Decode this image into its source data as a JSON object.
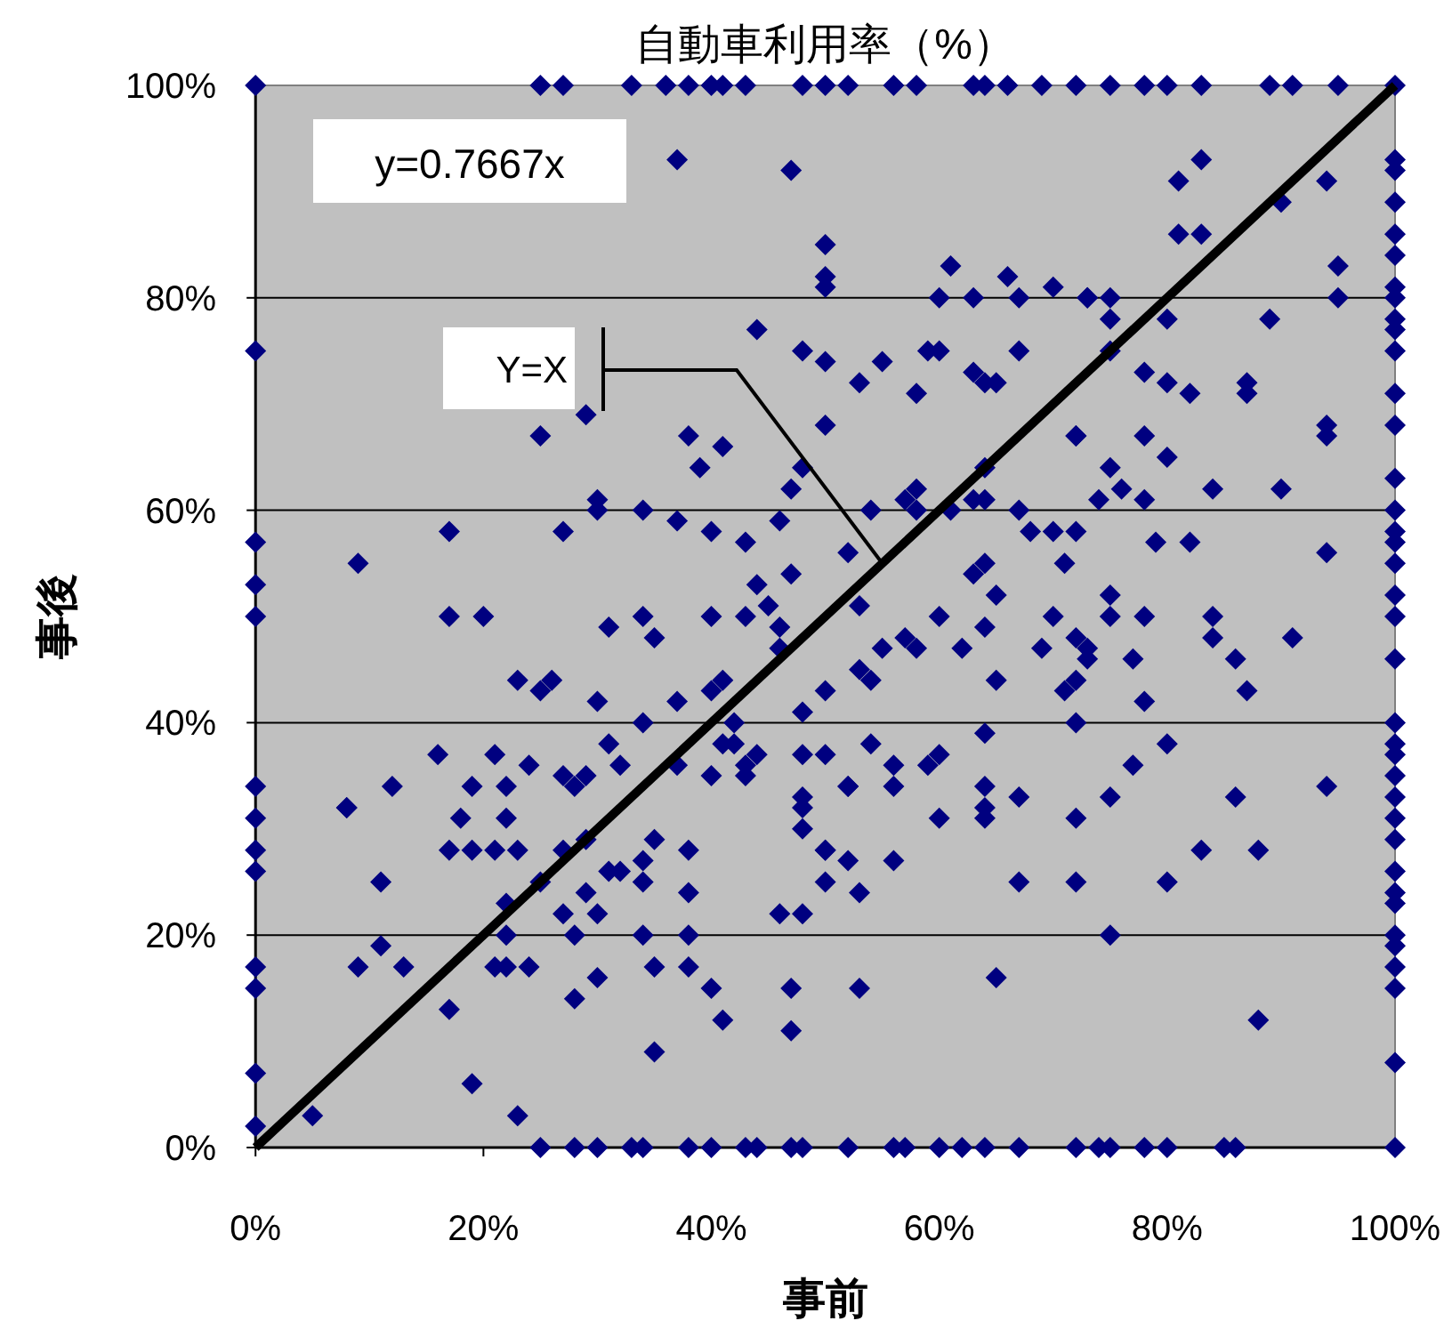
{
  "chart_data": {
    "type": "scatter",
    "title": "自動車利用率（%）",
    "xlabel": "事前",
    "ylabel": "事後",
    "xlim": [
      0,
      100
    ],
    "ylim": [
      0,
      100
    ],
    "xticks": [
      {
        "value": 0,
        "label": "0%"
      },
      {
        "value": 20,
        "label": "20%"
      },
      {
        "value": 40,
        "label": "40%"
      },
      {
        "value": 60,
        "label": "60%"
      },
      {
        "value": 80,
        "label": "80%"
      },
      {
        "value": 100,
        "label": "100%"
      }
    ],
    "yticks": [
      {
        "value": 0,
        "label": "0%"
      },
      {
        "value": 20,
        "label": "20%"
      },
      {
        "value": 40,
        "label": "40%"
      },
      {
        "value": 60,
        "label": "60%"
      },
      {
        "value": 80,
        "label": "80%"
      },
      {
        "value": 100,
        "label": "100%"
      }
    ],
    "grid": "y",
    "marker": "diamond",
    "annotations": [
      "y=0.7667x"
    ],
    "series": [
      {
        "color": "#000080",
        "x": [
          0,
          25,
          27,
          33,
          36,
          38,
          40,
          41,
          43,
          48,
          50,
          52,
          56,
          58,
          63,
          64,
          66,
          69,
          72,
          75,
          78,
          80,
          83,
          89,
          91,
          95,
          100,
          25,
          28,
          30,
          33,
          34,
          38,
          40,
          43,
          44,
          47,
          48,
          52,
          56,
          57,
          60,
          62,
          64,
          67,
          72,
          74,
          75,
          78,
          80,
          85,
          86,
          0,
          0,
          0,
          0,
          0,
          0,
          0,
          0,
          0,
          0,
          0,
          0,
          100,
          100,
          100,
          100,
          100,
          100,
          100,
          100,
          100,
          100,
          100,
          100,
          100,
          100,
          100,
          100,
          100,
          100,
          100,
          100,
          100,
          100,
          100,
          100,
          100,
          100,
          100,
          100,
          100,
          100,
          100,
          100,
          100,
          100,
          100,
          100,
          37,
          47,
          50,
          50,
          50,
          61,
          63,
          66,
          70,
          73,
          75,
          83,
          81,
          81,
          83,
          90,
          94,
          95,
          95,
          89,
          94,
          80,
          75,
          73,
          67,
          60,
          55,
          53,
          58,
          59,
          60,
          63,
          64,
          65,
          67,
          75,
          78,
          80,
          82,
          87,
          87,
          50,
          50,
          72,
          78,
          44,
          48,
          29,
          25,
          38,
          41,
          39,
          48,
          47,
          30,
          30,
          34,
          37,
          40,
          43,
          46,
          17,
          27,
          9,
          47,
          44,
          45,
          46,
          46,
          17,
          20,
          31,
          34,
          35,
          40,
          43,
          23,
          25,
          26,
          30,
          37,
          40,
          41,
          50,
          48,
          42,
          34,
          31,
          41,
          42,
          44,
          48,
          50,
          16,
          21,
          24,
          22,
          19,
          12,
          8,
          27,
          28,
          29,
          32,
          37,
          40,
          43,
          43,
          48,
          72,
          80,
          94,
          75,
          76,
          74,
          78,
          84,
          90,
          64,
          58,
          57,
          58,
          54,
          63,
          64,
          61,
          67,
          68,
          70,
          72,
          79,
          82,
          94,
          52,
          63,
          64,
          71,
          53,
          65,
          75,
          60,
          70,
          75,
          78,
          84,
          91,
          64,
          57,
          58,
          55,
          62,
          72,
          73,
          84,
          86,
          69,
          77,
          53,
          54,
          65,
          73,
          72,
          71,
          87,
          78,
          72,
          64,
          54,
          60,
          56,
          59,
          52,
          56,
          64,
          67,
          75,
          77,
          80,
          86,
          94,
          8,
          18,
          22,
          17,
          19,
          21,
          23,
          27,
          29,
          35,
          38,
          34,
          11,
          25,
          29,
          31,
          32,
          34,
          38,
          22,
          27,
          30,
          22,
          28,
          34,
          38,
          46,
          48,
          11,
          9,
          13,
          21,
          22,
          24,
          30,
          35,
          38,
          40,
          28,
          17,
          47,
          41,
          47,
          35,
          19,
          5,
          23,
          48,
          48,
          50,
          50,
          52,
          64,
          64,
          60,
          72,
          50,
          52,
          56,
          53,
          67,
          72,
          80,
          83,
          88,
          75,
          53,
          65,
          88
        ],
        "values": [
          100,
          100,
          100,
          100,
          100,
          100,
          100,
          100,
          100,
          100,
          100,
          100,
          100,
          100,
          100,
          100,
          100,
          100,
          100,
          100,
          100,
          100,
          100,
          100,
          100,
          100,
          100,
          0,
          0,
          0,
          0,
          0,
          0,
          0,
          0,
          0,
          0,
          0,
          0,
          0,
          0,
          0,
          0,
          0,
          0,
          0,
          0,
          0,
          0,
          0,
          0,
          0,
          75,
          57,
          53,
          50,
          34,
          31,
          28,
          26,
          17,
          15,
          7,
          2,
          93,
          92,
          89,
          86,
          84,
          81,
          80,
          78,
          77,
          75,
          71,
          68,
          63,
          60,
          58,
          57,
          55,
          52,
          50,
          46,
          40,
          38,
          37,
          35,
          33,
          31,
          29,
          26,
          24,
          23,
          20,
          19,
          17,
          15,
          8,
          0,
          93,
          92,
          85,
          82,
          81,
          83,
          80,
          82,
          81,
          80,
          80,
          93,
          91,
          86,
          86,
          89,
          91,
          83,
          80,
          78,
          68,
          78,
          78,
          80,
          80,
          80,
          74,
          72,
          71,
          75,
          75,
          73,
          72,
          72,
          75,
          75,
          73,
          72,
          71,
          72,
          71,
          74,
          68,
          67,
          67,
          77,
          75,
          69,
          67,
          67,
          66,
          64,
          64,
          62,
          61,
          60,
          60,
          59,
          58,
          57,
          59,
          58,
          58,
          55,
          54,
          53,
          51,
          49,
          47,
          50,
          50,
          49,
          50,
          48,
          50,
          50,
          44,
          43,
          44,
          42,
          42,
          43,
          44,
          43,
          41,
          40,
          40,
          38,
          38,
          38,
          37,
          37,
          37,
          37,
          37,
          36,
          34,
          34,
          34,
          32,
          35,
          34,
          35,
          36,
          36,
          35,
          35,
          36,
          33,
          67,
          65,
          67,
          64,
          62,
          61,
          61,
          62,
          62,
          64,
          62,
          61,
          60,
          60,
          61,
          61,
          60,
          60,
          58,
          58,
          58,
          57,
          57,
          56,
          56,
          54,
          55,
          55,
          51,
          52,
          52,
          50,
          50,
          50,
          50,
          50,
          48,
          49,
          48,
          47,
          47,
          47,
          48,
          47,
          48,
          46,
          47,
          46,
          45,
          44,
          44,
          46,
          44,
          43,
          43,
          42,
          40,
          39,
          38,
          37,
          36,
          36,
          34,
          34,
          34,
          33,
          33,
          36,
          38,
          33,
          34,
          32,
          31,
          31,
          28,
          28,
          28,
          28,
          28,
          29,
          29,
          28,
          27,
          25,
          25,
          24,
          26,
          26,
          25,
          24,
          23,
          22,
          22,
          20,
          20,
          20,
          20,
          22,
          22,
          19,
          17,
          17,
          17,
          17,
          17,
          16,
          17,
          17,
          15,
          14,
          13,
          15,
          12,
          11,
          9,
          6,
          3,
          3,
          32,
          30,
          28,
          25,
          34,
          32,
          31,
          31,
          31,
          28,
          27,
          27,
          24,
          25,
          25,
          25,
          28,
          28,
          20,
          15,
          16,
          12
        ]
      },
      {
        "type": "line",
        "name": "Y=X",
        "color": "#000000",
        "marker": "none",
        "x": [
          0,
          100
        ],
        "values": [
          0,
          100
        ]
      }
    ]
  }
}
